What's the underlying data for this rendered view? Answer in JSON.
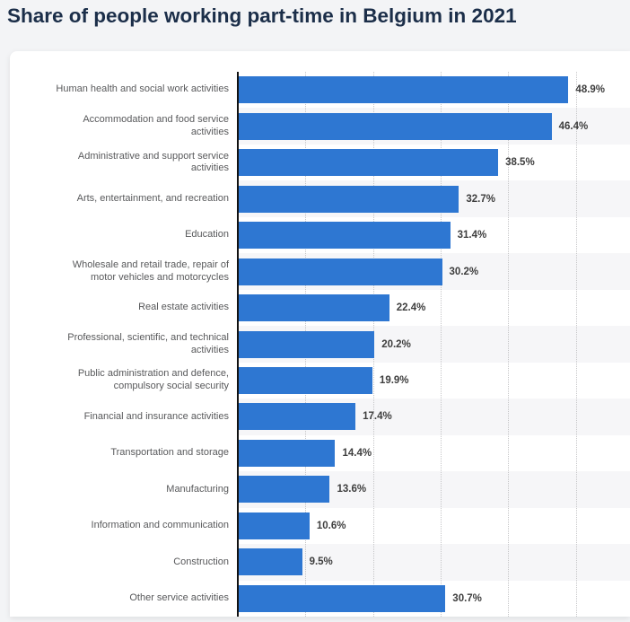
{
  "title": "Share of people working part-time in Belgium in 2021",
  "colors": {
    "page_background": "#f3f4f6",
    "card_background": "#ffffff",
    "title_color": "#1b2e49"
  },
  "chart_data": {
    "type": "bar",
    "orientation": "horizontal",
    "title": "Share of people working part-time in Belgium in 2021",
    "unit": "%",
    "categories": [
      "Human health and social work activities",
      "Accommodation and food service\nactivities",
      "Administrative and support service\nactivities",
      "Arts, entertainment, and recreation",
      "Education",
      "Wholesale and retail trade, repair of\nmotor vehicles and motorcycles",
      "Real estate activities",
      "Professional, scientific, and technical\nactivities",
      "Public administration and defence,\ncompulsory social security",
      "Financial and insurance activities",
      "Transportation and storage",
      "Manufacturing",
      "Information and communication",
      "Construction",
      "Other service activities"
    ],
    "values": [
      48.9,
      46.4,
      38.5,
      32.7,
      31.4,
      30.2,
      22.4,
      20.2,
      19.9,
      17.4,
      14.4,
      13.6,
      10.6,
      9.5,
      30.7
    ],
    "value_labels": [
      "48.9%",
      "46.4%",
      "38.5%",
      "32.7%",
      "31.4%",
      "30.2%",
      "22.4%",
      "20.2%",
      "19.9%",
      "17.4%",
      "14.4%",
      "13.6%",
      "10.6%",
      "9.5%",
      "30.7%"
    ],
    "xlim": [
      0,
      58
    ],
    "gridline_values": [
      10,
      20,
      30,
      40,
      50
    ],
    "grid_style": "dotted",
    "legend": "none",
    "bar_color": "#2e77d2",
    "stripe_color": "#f6f6f8",
    "axis_color": "#121212",
    "gridline_color": "#c6c6c8",
    "category_label_color": "#58595b",
    "value_label_color": "#3e3e3e"
  }
}
